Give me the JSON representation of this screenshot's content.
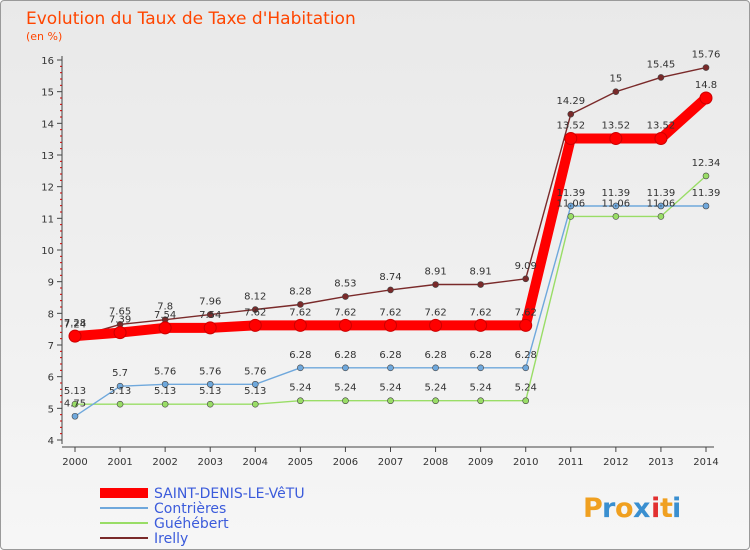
{
  "chart_data": {
    "type": "line",
    "title": "Evolution du Taux de Taxe d'Habitation",
    "subtitle": "(en %)",
    "x": [
      2000,
      2001,
      2002,
      2003,
      2004,
      2005,
      2006,
      2007,
      2008,
      2009,
      2010,
      2011,
      2012,
      2013,
      2014
    ],
    "ylim": [
      4,
      16
    ],
    "yticks": [
      4,
      5,
      6,
      7,
      8,
      9,
      10,
      11,
      12,
      13,
      14,
      15,
      16
    ],
    "grid": false,
    "legend_position": "bottom-left",
    "series": [
      {
        "name": "SAINT-DENIS-LE-VêTU",
        "color": "#ff0000",
        "labels": [
          "7.28",
          "7.39",
          "7.54",
          "7.54",
          "7.62",
          "7.62",
          "7.62",
          "7.62",
          "7.62",
          "7.62",
          "7.62",
          "13.52",
          "13.52",
          "13.52",
          "14.8"
        ],
        "values": [
          7.28,
          7.39,
          7.54,
          7.54,
          7.62,
          7.62,
          7.62,
          7.62,
          7.62,
          7.62,
          7.62,
          13.52,
          13.52,
          13.52,
          14.8
        ]
      },
      {
        "name": "Contrières",
        "color": "#6fa8dc",
        "labels": [
          "4.75",
          "5.7",
          "5.76",
          "5.76",
          "5.76",
          "6.28",
          "6.28",
          "6.28",
          "6.28",
          "6.28",
          "6.28",
          "11.39",
          "11.39",
          "11.39",
          "11.39"
        ],
        "values": [
          4.75,
          5.7,
          5.76,
          5.76,
          5.76,
          6.28,
          6.28,
          6.28,
          6.28,
          6.28,
          6.28,
          11.39,
          11.39,
          11.39,
          11.39
        ]
      },
      {
        "name": "Guéhébert",
        "color": "#99dd66",
        "labels": [
          "5.13",
          "5.13",
          "5.13",
          "5.13",
          "5.13",
          "5.24",
          "5.24",
          "5.24",
          "5.24",
          "5.24",
          "5.24",
          "11.06",
          "11.06",
          "11.06",
          "12.34"
        ],
        "values": [
          5.13,
          5.13,
          5.13,
          5.13,
          5.13,
          5.24,
          5.24,
          5.24,
          5.24,
          5.24,
          5.24,
          11.06,
          11.06,
          11.06,
          12.34
        ]
      },
      {
        "name": "Irelly",
        "color": "#7a2a2a",
        "labels": [
          "7.24",
          "7.65",
          "7.8",
          "7.96",
          "8.12",
          "8.28",
          "8.53",
          "8.74",
          "8.91",
          "8.91",
          "9.09",
          "14.29",
          "15",
          "15.45",
          "15.76"
        ],
        "values": [
          7.24,
          7.65,
          7.8,
          7.96,
          8.12,
          8.28,
          8.53,
          8.74,
          8.91,
          8.91,
          9.09,
          14.29,
          15,
          15.45,
          15.76
        ]
      }
    ]
  },
  "brand": "Proxiti"
}
